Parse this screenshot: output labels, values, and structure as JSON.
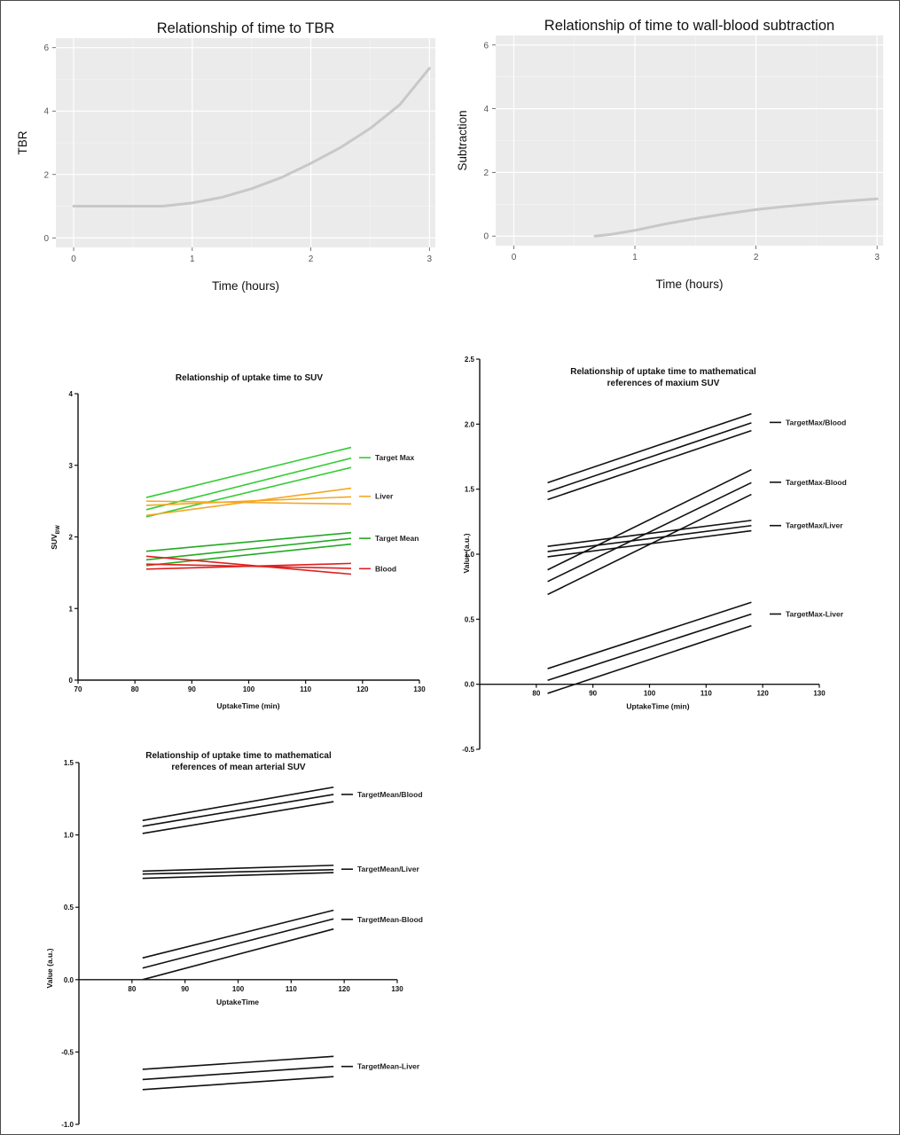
{
  "chart_data": [
    {
      "type": "line",
      "title": "Relationship of time to TBR",
      "xlabel": "Time (hours)",
      "ylabel": "TBR",
      "xlim": [
        -0.15,
        3.05
      ],
      "ylim": [
        -0.3,
        6.3
      ],
      "xticks": [
        "0",
        "1",
        "2",
        "3"
      ],
      "yticks": [
        "0",
        "2",
        "4",
        "6"
      ],
      "grid": true,
      "background": "#ebebeb",
      "line_color": "#c8c8c8",
      "series": [
        {
          "x": [
            0,
            0.5,
            0.75,
            1,
            1.25,
            1.5,
            1.75,
            2,
            2.25,
            2.5,
            2.75,
            3
          ],
          "values": [
            1.0,
            1.0,
            1.0,
            1.1,
            1.28,
            1.55,
            1.9,
            2.35,
            2.85,
            3.45,
            4.2,
            5.35
          ]
        }
      ]
    },
    {
      "type": "line",
      "title": "Relationship of time to wall-blood subtraction",
      "xlabel": "Time (hours)",
      "ylabel": "Subtraction",
      "xlim": [
        -0.15,
        3.05
      ],
      "ylim": [
        -0.3,
        6.3
      ],
      "xticks": [
        "0",
        "1",
        "2",
        "3"
      ],
      "yticks": [
        "0",
        "2",
        "4",
        "6"
      ],
      "grid": true,
      "background": "#ebebeb",
      "line_color": "#c8c8c8",
      "series": [
        {
          "x": [
            0.67,
            0.8,
            1,
            1.25,
            1.5,
            1.75,
            2,
            2.25,
            2.5,
            2.75,
            3
          ],
          "values": [
            0.0,
            0.05,
            0.18,
            0.38,
            0.55,
            0.7,
            0.83,
            0.93,
            1.02,
            1.1,
            1.17
          ]
        }
      ]
    },
    {
      "type": "line",
      "title": "Relationship of uptake time to SUV",
      "xlabel": "UptakeTime (min)",
      "ylabel": "SUV",
      "ylabel_sub": "BW",
      "xlim": [
        70,
        130
      ],
      "ylim": [
        0,
        4
      ],
      "xticks": [
        "70",
        "80",
        "90",
        "100",
        "110",
        "120",
        "130"
      ],
      "yticks": [
        "0",
        "1",
        "2",
        "3",
        "4"
      ],
      "grid": false,
      "x_start": 82,
      "x_end": 118,
      "groups": [
        {
          "name": "Target Max",
          "color": "#33cc33",
          "lines": [
            [
              2.55,
              3.25
            ],
            [
              2.38,
              3.1
            ],
            [
              2.28,
              2.97
            ]
          ]
        },
        {
          "name": "Liver",
          "color": "#f5a623",
          "lines": [
            [
              2.3,
              2.68
            ],
            [
              2.44,
              2.56
            ],
            [
              2.5,
              2.46
            ]
          ]
        },
        {
          "name": "Target Mean",
          "color": "#22aa22",
          "lines": [
            [
              1.8,
              2.06
            ],
            [
              1.68,
              1.98
            ],
            [
              1.6,
              1.9
            ]
          ]
        },
        {
          "name": "Blood",
          "color": "#e02020",
          "lines": [
            [
              1.73,
              1.48
            ],
            [
              1.62,
              1.56
            ],
            [
              1.55,
              1.63
            ]
          ]
        }
      ]
    },
    {
      "type": "line",
      "title": "Relationship of uptake time to mathematical references of maxium SUV",
      "title_lines": [
        "Relationship of uptake time to mathematical",
        "references of maxium SUV"
      ],
      "xlabel": "UptakeTime (min)",
      "ylabel": "Value (a.u.)",
      "xlim": [
        70,
        130
      ],
      "ylim": [
        -0.5,
        2.5
      ],
      "xticks": [
        "80",
        "90",
        "100",
        "110",
        "120",
        "130"
      ],
      "yticks": [
        "-0.5",
        "0.0",
        "0.5",
        "1.0",
        "1.5",
        "2.0",
        "2.5"
      ],
      "grid": false,
      "x_start": 82,
      "x_end": 118,
      "groups": [
        {
          "name": "TargetMax/Blood",
          "color": "#111111",
          "lines": [
            [
              1.55,
              2.08
            ],
            [
              1.48,
              2.01
            ],
            [
              1.42,
              1.95
            ]
          ]
        },
        {
          "name": "TargetMax-Blood",
          "color": "#111111",
          "lines": [
            [
              0.88,
              1.65
            ],
            [
              0.79,
              1.55
            ],
            [
              0.69,
              1.46
            ]
          ]
        },
        {
          "name": "TargetMax/Liver",
          "color": "#111111",
          "lines": [
            [
              1.06,
              1.26
            ],
            [
              1.02,
              1.22
            ],
            [
              0.98,
              1.18
            ]
          ]
        },
        {
          "name": "TargetMax-Liver",
          "color": "#111111",
          "lines": [
            [
              0.12,
              0.63
            ],
            [
              0.03,
              0.54
            ],
            [
              -0.07,
              0.45
            ]
          ]
        }
      ]
    },
    {
      "type": "line",
      "title": "Relationship of uptake time to mathematical references of mean arterial SUV",
      "title_lines": [
        "Relationship of uptake time to mathematical",
        "references of mean arterial SUV"
      ],
      "xlabel": "UptakeTime",
      "ylabel": "Value (a.u.)",
      "xlim": [
        70,
        130
      ],
      "ylim": [
        -1.0,
        1.5
      ],
      "xticks": [
        "80",
        "90",
        "100",
        "110",
        "120",
        "130"
      ],
      "yticks": [
        "-1.0",
        "-0.5",
        "0.0",
        "0.5",
        "1.0",
        "1.5"
      ],
      "grid": false,
      "x_start": 82,
      "x_end": 118,
      "groups": [
        {
          "name": "TargetMean/Blood",
          "color": "#111111",
          "lines": [
            [
              1.1,
              1.33
            ],
            [
              1.06,
              1.28
            ],
            [
              1.01,
              1.23
            ]
          ]
        },
        {
          "name": "TargetMean/Liver",
          "color": "#111111",
          "lines": [
            [
              0.75,
              0.79
            ],
            [
              0.73,
              0.76
            ],
            [
              0.7,
              0.74
            ]
          ]
        },
        {
          "name": "TargetMean-Blood",
          "color": "#111111",
          "lines": [
            [
              0.15,
              0.48
            ],
            [
              0.08,
              0.42
            ],
            [
              0.0,
              0.35
            ]
          ]
        },
        {
          "name": "TargetMean-Liver",
          "color": "#111111",
          "lines": [
            [
              -0.62,
              -0.53
            ],
            [
              -0.69,
              -0.6
            ],
            [
              -0.76,
              -0.67
            ]
          ]
        }
      ]
    }
  ]
}
